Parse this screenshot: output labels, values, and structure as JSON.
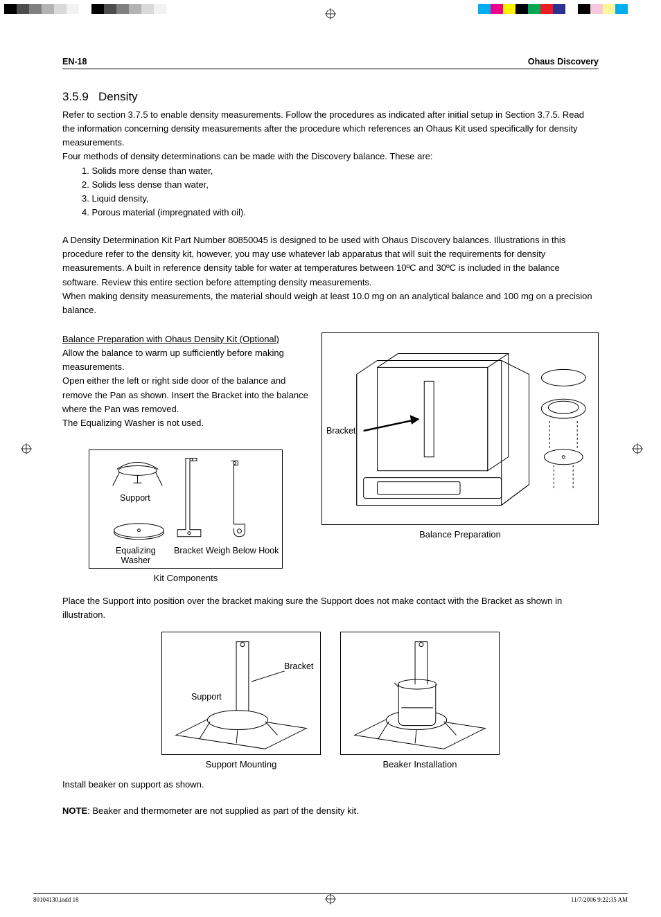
{
  "color_bars": {
    "left": [
      "#000000",
      "#4d4d4d",
      "#808080",
      "#b3b3b3",
      "#d9d9d9",
      "#f2f2f2",
      "#ffffff",
      "#000000",
      "#4d4d4d",
      "#808080",
      "#b3b3b3",
      "#d9d9d9",
      "#f2f2f2",
      "#ffffff"
    ],
    "right": [
      "#00aeef",
      "#ec008c",
      "#fff200",
      "#000000",
      "#00a651",
      "#ed1c24",
      "#2e3192",
      "#ffffff",
      "#000000",
      "#f7c9de",
      "#fff799",
      "#00aeef"
    ]
  },
  "header": {
    "page_code": "EN-18",
    "doc_title": "Ohaus Discovery"
  },
  "section": {
    "number": "3.5.9",
    "title": "Density",
    "intro": "Refer to section 3.7.5 to enable density measurements.  Follow the procedures as indicated after initial setup in Section 3.7.5.  Read the information concerning density measurements after the procedure which references an Ohaus Kit used specifically for density measurements.",
    "methods_intro": "Four methods of density determinations can be made with the Discovery balance. These are:",
    "methods": [
      "1. Solids more dense than water,",
      "2. Solids less dense than water,",
      "3. Liquid density,",
      "4. Porous material (impregnated with oil)."
    ],
    "kit_para": "A Density Determination Kit Part Number 80850045 is designed to be used with Ohaus Discovery balances.  Illustrations in this procedure refer to the density kit, however, you may use whatever lab apparatus that will suit the requirements for density measurements. A built in reference density table for water at temperatures between 10ºC and 30ºC is included in the balance software.   Review this entire section before attempting density measurements.",
    "weigh_note": "When making density measurements, the material should weigh at least 10.0 mg on an analytical balance and 100 mg on a precision balance.",
    "prep_heading": "Balance Preparation with Ohaus Density Kit (Optional)",
    "prep_p1": "Allow the balance to warm up sufficiently before making measurements.",
    "prep_p2": "Open either the left or right side door of the balance and remove the Pan as shown. Insert the Bracket into the balance where the Pan was removed.",
    "prep_p3": "The Equalizing Washer is not used.",
    "place_support": "Place the Support into position over the bracket making sure the Support does not make contact with the Bracket as shown in illustration.",
    "install_beaker": "Install beaker on support as shown.",
    "note_label": "NOTE",
    "note_text": ": Beaker and thermometer are not supplied as part of the density kit."
  },
  "figures": {
    "kit_components": {
      "caption": "Kit Components",
      "labels": {
        "support": "Support",
        "equalizing_washer": "Equalizing\nWasher",
        "bracket": "Bracket",
        "weigh_hook": "Weigh Below Hook"
      }
    },
    "balance_prep": {
      "caption": "Balance Preparation",
      "bracket_label": "Bracket"
    },
    "support_mounting": {
      "caption": "Support Mounting",
      "labels": {
        "support": "Support",
        "bracket": "Bracket"
      }
    },
    "beaker_install": {
      "caption": "Beaker Installation"
    }
  },
  "footer": {
    "left": "80104130.indd   18",
    "right": "11/7/2006   9:22:35 AM"
  }
}
